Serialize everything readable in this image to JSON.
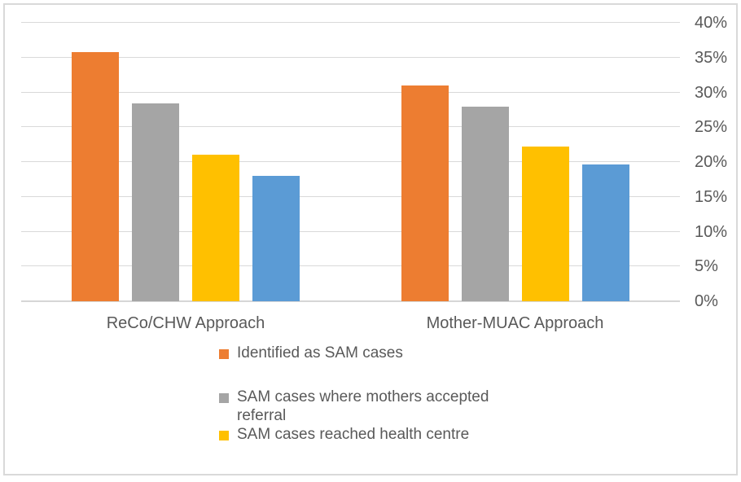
{
  "chart_data": {
    "type": "bar",
    "title": "",
    "categories": [
      "ReCo/CHW Approach",
      "Mother-MUAC Approach"
    ],
    "series": [
      {
        "name": "Identified as SAM cases",
        "color": "#ED7D31",
        "values": [
          35.8,
          31.0
        ]
      },
      {
        "name": "SAM cases where mothers accepted referral",
        "color": "#A5A5A5",
        "values": [
          28.4,
          28.0
        ]
      },
      {
        "name": "SAM cases reached health centre",
        "color": "#FFC000",
        "values": [
          21.1,
          22.2
        ]
      },
      {
        "name": "",
        "color": "#5B9BD5",
        "values": [
          18.0,
          19.7
        ]
      }
    ],
    "y_axis": {
      "side": "right",
      "min": 0,
      "max": 40,
      "step": 5,
      "unit": "%",
      "tick_labels": [
        "0%",
        "5%",
        "10%",
        "15%",
        "20%",
        "25%",
        "30%",
        "35%",
        "40%"
      ]
    },
    "grid": true,
    "legend": {
      "position": "bottom",
      "entries": [
        {
          "label": "Identified as SAM cases",
          "color": "#ED7D31"
        },
        {
          "label": "SAM cases where mothers accepted referral",
          "color": "#A5A5A5"
        },
        {
          "label": "SAM cases reached health centre",
          "color": "#FFC000"
        }
      ]
    }
  },
  "colors": {
    "background": "#FFFFFF",
    "frame_border": "#D9D9D9",
    "gridline": "#D9D9D9",
    "axis_baseline": "#D6D6D6",
    "text": "#595959"
  }
}
